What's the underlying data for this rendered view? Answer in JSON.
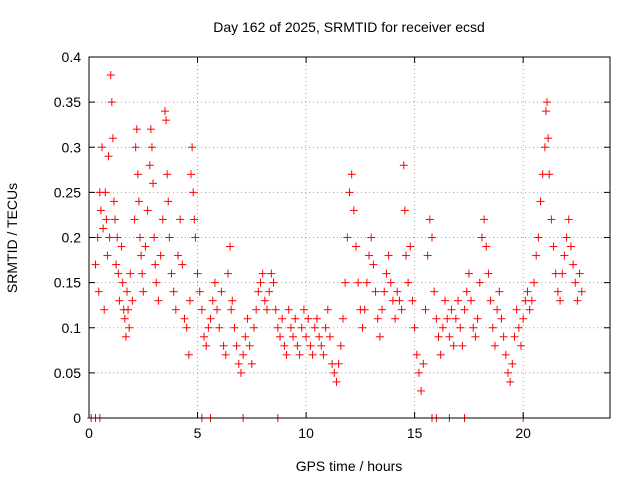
{
  "chart_data": {
    "type": "scatter",
    "title": "Day 162 of 2025, SRMTID for receiver ecsd",
    "xlabel": "GPS time / hours",
    "ylabel": "SRMTID / TECUs",
    "xlim": [
      0,
      24
    ],
    "ylim": [
      0,
      0.4
    ],
    "xticks": [
      0,
      5,
      10,
      15,
      20
    ],
    "xtick_labels": [
      "0",
      "5",
      "10",
      "15",
      "20"
    ],
    "yticks": [
      0,
      0.05,
      0.1,
      0.15,
      0.2,
      0.25,
      0.3,
      0.35,
      0.4
    ],
    "ytick_labels": [
      "0",
      "0.05",
      "0.1",
      "0.15",
      "0.2",
      "0.25",
      "0.3",
      "0.35",
      "0.4"
    ],
    "grid": true,
    "marker": "plus",
    "color": "#ff0000",
    "series": [
      {
        "name": "SRMTID",
        "points": [
          [
            0.3,
            0.17
          ],
          [
            0.4,
            0.2
          ],
          [
            0.45,
            0.14
          ],
          [
            0.5,
            0.25
          ],
          [
            0.55,
            0.23
          ],
          [
            0.6,
            0.3
          ],
          [
            0.65,
            0.21
          ],
          [
            0.7,
            0.12
          ],
          [
            0.75,
            0.25
          ],
          [
            0.8,
            0.22
          ],
          [
            0.85,
            0.18
          ],
          [
            0.9,
            0.29
          ],
          [
            0.95,
            0.2
          ],
          [
            1.0,
            0.38
          ],
          [
            1.05,
            0.35
          ],
          [
            1.1,
            0.31
          ],
          [
            1.15,
            0.24
          ],
          [
            1.2,
            0.22
          ],
          [
            1.25,
            0.17
          ],
          [
            1.3,
            0.2
          ],
          [
            1.35,
            0.16
          ],
          [
            1.4,
            0.13
          ],
          [
            1.5,
            0.19
          ],
          [
            1.55,
            0.15
          ],
          [
            1.6,
            0.12
          ],
          [
            1.65,
            0.11
          ],
          [
            1.7,
            0.09
          ],
          [
            1.75,
            0.14
          ],
          [
            1.8,
            0.12
          ],
          [
            1.85,
            0.1
          ],
          [
            1.9,
            0.16
          ],
          [
            2.0,
            0.13
          ],
          [
            2.1,
            0.22
          ],
          [
            2.15,
            0.3
          ],
          [
            2.2,
            0.32
          ],
          [
            2.25,
            0.27
          ],
          [
            2.3,
            0.24
          ],
          [
            2.35,
            0.2
          ],
          [
            2.4,
            0.18
          ],
          [
            2.45,
            0.16
          ],
          [
            2.5,
            0.14
          ],
          [
            2.6,
            0.19
          ],
          [
            2.7,
            0.23
          ],
          [
            2.8,
            0.28
          ],
          [
            2.85,
            0.32
          ],
          [
            2.9,
            0.3
          ],
          [
            2.95,
            0.26
          ],
          [
            3.0,
            0.2
          ],
          [
            3.05,
            0.17
          ],
          [
            3.1,
            0.15
          ],
          [
            3.2,
            0.13
          ],
          [
            3.3,
            0.18
          ],
          [
            3.4,
            0.22
          ],
          [
            3.5,
            0.34
          ],
          [
            3.55,
            0.33
          ],
          [
            3.6,
            0.27
          ],
          [
            3.65,
            0.24
          ],
          [
            3.7,
            0.2
          ],
          [
            3.8,
            0.16
          ],
          [
            3.9,
            0.14
          ],
          [
            4.0,
            0.12
          ],
          [
            4.1,
            0.18
          ],
          [
            4.2,
            0.22
          ],
          [
            4.3,
            0.17
          ],
          [
            4.4,
            0.11
          ],
          [
            4.5,
            0.1
          ],
          [
            4.6,
            0.07
          ],
          [
            4.65,
            0.13
          ],
          [
            4.7,
            0.27
          ],
          [
            4.75,
            0.3
          ],
          [
            4.8,
            0.25
          ],
          [
            4.85,
            0.22
          ],
          [
            4.9,
            0.2
          ],
          [
            5.0,
            0.16
          ],
          [
            5.1,
            0.14
          ],
          [
            5.2,
            0.12
          ],
          [
            5.3,
            0.09
          ],
          [
            5.4,
            0.08
          ],
          [
            5.5,
            0.1
          ],
          [
            5.6,
            0.11
          ],
          [
            5.7,
            0.13
          ],
          [
            5.8,
            0.15
          ],
          [
            5.9,
            0.12
          ],
          [
            6.0,
            0.1
          ],
          [
            6.1,
            0.14
          ],
          [
            6.2,
            0.08
          ],
          [
            6.3,
            0.07
          ],
          [
            6.4,
            0.16
          ],
          [
            6.5,
            0.19
          ],
          [
            6.55,
            0.12
          ],
          [
            6.6,
            0.13
          ],
          [
            6.7,
            0.1
          ],
          [
            6.8,
            0.08
          ],
          [
            6.9,
            0.06
          ],
          [
            7.0,
            0.05
          ],
          [
            7.1,
            0.07
          ],
          [
            7.2,
            0.09
          ],
          [
            7.3,
            0.11
          ],
          [
            7.4,
            0.08
          ],
          [
            7.5,
            0.06
          ],
          [
            7.6,
            0.1
          ],
          [
            7.7,
            0.12
          ],
          [
            7.8,
            0.14
          ],
          [
            7.9,
            0.15
          ],
          [
            8.0,
            0.16
          ],
          [
            8.1,
            0.13
          ],
          [
            8.2,
            0.12
          ],
          [
            8.3,
            0.14
          ],
          [
            8.4,
            0.16
          ],
          [
            8.5,
            0.15
          ],
          [
            8.6,
            0.12
          ],
          [
            8.7,
            0.1
          ],
          [
            8.8,
            0.09
          ],
          [
            8.9,
            0.11
          ],
          [
            9.0,
            0.08
          ],
          [
            9.1,
            0.07
          ],
          [
            9.2,
            0.12
          ],
          [
            9.3,
            0.1
          ],
          [
            9.4,
            0.09
          ],
          [
            9.5,
            0.11
          ],
          [
            9.6,
            0.08
          ],
          [
            9.7,
            0.07
          ],
          [
            9.8,
            0.1
          ],
          [
            9.9,
            0.12
          ],
          [
            10.0,
            0.09
          ],
          [
            10.1,
            0.11
          ],
          [
            10.2,
            0.08
          ],
          [
            10.3,
            0.07
          ],
          [
            10.4,
            0.1
          ],
          [
            10.5,
            0.11
          ],
          [
            10.6,
            0.09
          ],
          [
            10.7,
            0.08
          ],
          [
            10.8,
            0.07
          ],
          [
            10.9,
            0.1
          ],
          [
            11.0,
            0.12
          ],
          [
            11.1,
            0.09
          ],
          [
            11.2,
            0.06
          ],
          [
            11.3,
            0.05
          ],
          [
            11.4,
            0.04
          ],
          [
            11.5,
            0.06
          ],
          [
            11.6,
            0.08
          ],
          [
            11.7,
            0.11
          ],
          [
            11.8,
            0.15
          ],
          [
            11.9,
            0.2
          ],
          [
            12.0,
            0.25
          ],
          [
            12.1,
            0.27
          ],
          [
            12.2,
            0.23
          ],
          [
            12.3,
            0.19
          ],
          [
            12.4,
            0.15
          ],
          [
            12.5,
            0.12
          ],
          [
            12.6,
            0.1
          ],
          [
            12.7,
            0.12
          ],
          [
            12.8,
            0.15
          ],
          [
            12.9,
            0.18
          ],
          [
            13.0,
            0.2
          ],
          [
            13.1,
            0.17
          ],
          [
            13.2,
            0.14
          ],
          [
            13.3,
            0.11
          ],
          [
            13.4,
            0.09
          ],
          [
            13.5,
            0.12
          ],
          [
            13.6,
            0.14
          ],
          [
            13.7,
            0.16
          ],
          [
            13.8,
            0.18
          ],
          [
            13.9,
            0.15
          ],
          [
            14.0,
            0.13
          ],
          [
            14.1,
            0.11
          ],
          [
            14.2,
            0.14
          ],
          [
            14.3,
            0.13
          ],
          [
            14.4,
            0.12
          ],
          [
            14.5,
            0.28
          ],
          [
            14.55,
            0.23
          ],
          [
            14.6,
            0.18
          ],
          [
            14.7,
            0.15
          ],
          [
            14.8,
            0.19
          ],
          [
            14.9,
            0.13
          ],
          [
            15.0,
            0.1
          ],
          [
            15.1,
            0.07
          ],
          [
            15.2,
            0.05
          ],
          [
            15.3,
            0.03
          ],
          [
            15.4,
            0.06
          ],
          [
            15.5,
            0.12
          ],
          [
            15.6,
            0.18
          ],
          [
            15.7,
            0.22
          ],
          [
            15.8,
            0.2
          ],
          [
            15.9,
            0.14
          ],
          [
            16.0,
            0.11
          ],
          [
            16.1,
            0.09
          ],
          [
            16.2,
            0.07
          ],
          [
            16.3,
            0.1
          ],
          [
            16.4,
            0.13
          ],
          [
            16.5,
            0.11
          ],
          [
            16.6,
            0.09
          ],
          [
            16.7,
            0.12
          ],
          [
            16.8,
            0.08
          ],
          [
            16.9,
            0.11
          ],
          [
            17.0,
            0.13
          ],
          [
            17.1,
            0.1
          ],
          [
            17.2,
            0.08
          ],
          [
            17.3,
            0.12
          ],
          [
            17.4,
            0.14
          ],
          [
            17.5,
            0.16
          ],
          [
            17.6,
            0.13
          ],
          [
            17.7,
            0.1
          ],
          [
            17.8,
            0.09
          ],
          [
            17.9,
            0.11
          ],
          [
            18.0,
            0.15
          ],
          [
            18.1,
            0.2
          ],
          [
            18.2,
            0.22
          ],
          [
            18.3,
            0.19
          ],
          [
            18.4,
            0.16
          ],
          [
            18.5,
            0.13
          ],
          [
            18.6,
            0.1
          ],
          [
            18.7,
            0.08
          ],
          [
            18.8,
            0.12
          ],
          [
            18.9,
            0.14
          ],
          [
            19.0,
            0.11
          ],
          [
            19.1,
            0.09
          ],
          [
            19.2,
            0.07
          ],
          [
            19.3,
            0.05
          ],
          [
            19.4,
            0.04
          ],
          [
            19.5,
            0.06
          ],
          [
            19.6,
            0.09
          ],
          [
            19.7,
            0.12
          ],
          [
            19.8,
            0.1
          ],
          [
            19.9,
            0.08
          ],
          [
            20.0,
            0.11
          ],
          [
            20.1,
            0.13
          ],
          [
            20.2,
            0.14
          ],
          [
            20.3,
            0.12
          ],
          [
            20.4,
            0.13
          ],
          [
            20.5,
            0.15
          ],
          [
            20.6,
            0.18
          ],
          [
            20.7,
            0.2
          ],
          [
            20.8,
            0.24
          ],
          [
            20.9,
            0.27
          ],
          [
            21.0,
            0.3
          ],
          [
            21.05,
            0.34
          ],
          [
            21.1,
            0.35
          ],
          [
            21.15,
            0.31
          ],
          [
            21.2,
            0.27
          ],
          [
            21.3,
            0.22
          ],
          [
            21.4,
            0.19
          ],
          [
            21.5,
            0.16
          ],
          [
            21.6,
            0.14
          ],
          [
            21.7,
            0.13
          ],
          [
            21.8,
            0.16
          ],
          [
            21.9,
            0.18
          ],
          [
            22.0,
            0.2
          ],
          [
            22.1,
            0.22
          ],
          [
            22.2,
            0.19
          ],
          [
            22.3,
            0.17
          ],
          [
            22.4,
            0.15
          ],
          [
            22.5,
            0.13
          ],
          [
            22.6,
            0.16
          ],
          [
            22.7,
            0.14
          ]
        ],
        "zeros": [
          0.1,
          0.3,
          0.5,
          5.2,
          5.6,
          7.1,
          8.7,
          15.8,
          16.0,
          16.6,
          17.3,
          20.0
        ]
      }
    ]
  }
}
